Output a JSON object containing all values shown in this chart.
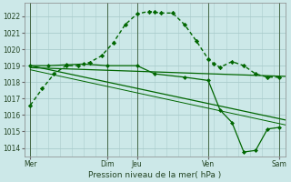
{
  "background_color": "#cce8e8",
  "grid_color": "#aacccc",
  "title": "Pression niveau de la mer( hPa )",
  "ylim": [
    1013.5,
    1022.8
  ],
  "yticks": [
    1014,
    1015,
    1016,
    1017,
    1018,
    1019,
    1020,
    1021,
    1022
  ],
  "xlim": [
    0,
    22
  ],
  "x_tick_labels": [
    "Mer",
    "Dim",
    "Jeu",
    "Ven",
    "Sam"
  ],
  "x_tick_positions": [
    0.5,
    7,
    9.5,
    15.5,
    21.5
  ],
  "x_vlines": [
    0.5,
    7.0,
    9.5,
    15.5,
    21.5
  ],
  "series_arc": {
    "x": [
      0.5,
      1.5,
      2.5,
      3.5,
      4.5,
      5.5,
      6.5,
      7.5,
      8.5,
      9.5,
      10.5,
      11.0,
      11.5,
      12.5,
      13.5,
      14.5,
      15.5,
      16.0,
      16.5,
      17.5,
      18.5,
      19.5,
      20.5,
      21.5
    ],
    "y": [
      1016.6,
      1017.6,
      1018.5,
      1019.0,
      1019.0,
      1019.2,
      1019.6,
      1020.4,
      1021.5,
      1022.15,
      1022.3,
      1022.25,
      1022.2,
      1022.2,
      1021.5,
      1020.5,
      1019.4,
      1019.1,
      1018.9,
      1019.25,
      1019.0,
      1018.5,
      1018.3,
      1018.3
    ],
    "color": "#006600",
    "lw": 1.0,
    "marker": "D",
    "ms": 2.2,
    "ls": "--"
  },
  "series_flat": {
    "x": [
      0.5,
      22
    ],
    "y": [
      1018.88,
      1018.35
    ],
    "color": "#006600",
    "lw": 0.9,
    "ls": "-"
  },
  "series_decline1": {
    "x": [
      0.5,
      22
    ],
    "y": [
      1019.0,
      1015.7
    ],
    "color": "#006600",
    "lw": 0.9,
    "ls": "-"
  },
  "series_decline2": {
    "x": [
      0.5,
      22
    ],
    "y": [
      1018.75,
      1015.4
    ],
    "color": "#006600",
    "lw": 0.7,
    "ls": "-"
  },
  "series_jagged": {
    "x": [
      0.5,
      2.0,
      3.5,
      5.0,
      7.0,
      9.5,
      11.0,
      13.5,
      15.5,
      16.5,
      17.5,
      18.5,
      19.5,
      20.5,
      21.5
    ],
    "y": [
      1019.0,
      1019.0,
      1019.05,
      1019.1,
      1019.0,
      1019.0,
      1018.5,
      1018.3,
      1018.1,
      1016.3,
      1015.55,
      1013.75,
      1013.85,
      1015.15,
      1015.25
    ],
    "color": "#006600",
    "lw": 0.9,
    "marker": "D",
    "ms": 2.0,
    "ls": "-"
  }
}
